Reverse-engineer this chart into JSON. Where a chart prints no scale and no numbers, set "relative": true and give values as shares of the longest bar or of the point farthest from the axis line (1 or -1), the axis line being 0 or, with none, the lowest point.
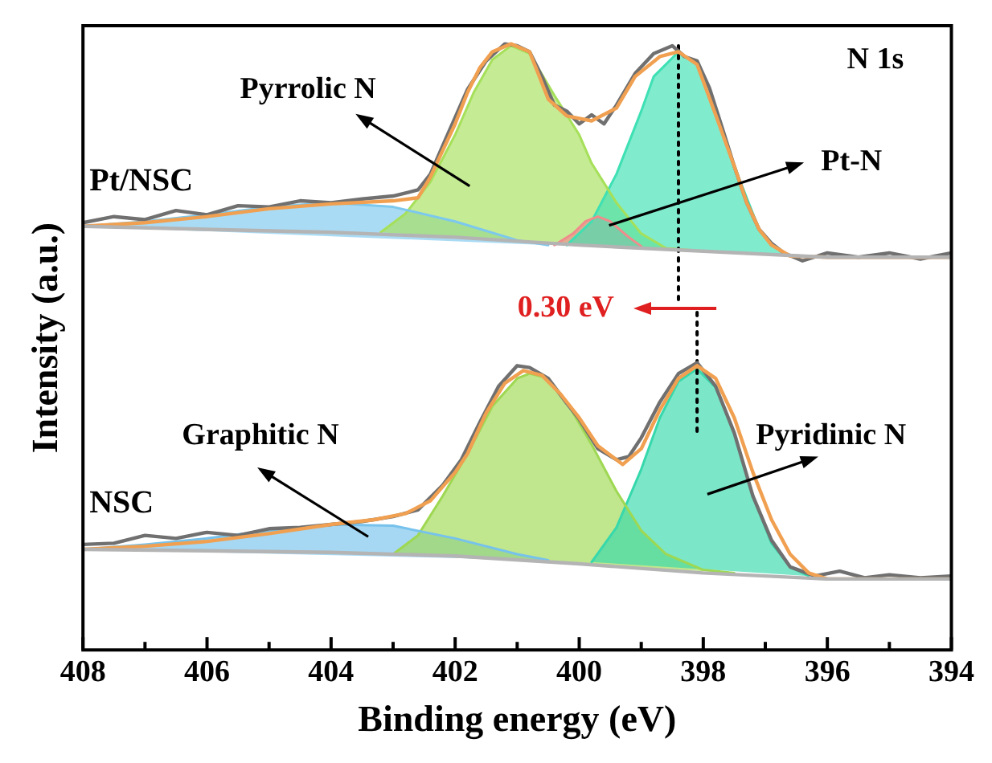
{
  "chart_data": {
    "type": "line",
    "xlabel": "Binding energy (eV)",
    "ylabel": "Intensity (a.u.)",
    "relative": true,
    "legend": false,
    "grid": false,
    "marker": "none",
    "xlim": [
      408,
      394
    ],
    "xticks": [
      408,
      {
        "value": 407,
        "label": null
      },
      406,
      {
        "value": 405,
        "label": null
      },
      404,
      {
        "value": 403,
        "label": null
      },
      402,
      {
        "value": 401,
        "label": null
      },
      400,
      {
        "value": 399,
        "label": null
      },
      398,
      {
        "value": 397,
        "label": null
      },
      396,
      {
        "value": 395,
        "label": null
      },
      394
    ],
    "annotations": [
      "N 1s",
      "0.30 eV",
      "Pyrrolic N",
      "Pt-N",
      "Graphitic N",
      "Pyridinic N"
    ],
    "series": [
      {
        "type": "line",
        "color": "#b4b4b4",
        "x": [
          408,
          404,
          402,
          400,
          398,
          396,
          394
        ],
        "values": [
          0.699,
          0.689,
          0.681,
          0.668,
          0.658,
          0.648,
          0.648
        ]
      },
      {
        "type": "area",
        "color": "#7cc8ee",
        "x": [
          408,
          407,
          406,
          405,
          404,
          403,
          402,
          401,
          400.5
        ],
        "values": [
          0.699,
          0.707,
          0.718,
          0.731,
          0.738,
          0.731,
          0.707,
          0.676,
          0.668
        ]
      },
      {
        "type": "area",
        "color": "#a6e05a",
        "x": [
          403.2,
          402.8,
          402.4,
          402,
          401.7,
          401.4,
          401.1,
          400.8,
          400.4,
          400,
          399.8,
          399.4,
          399,
          398.6,
          398
        ],
        "values": [
          0.689,
          0.72,
          0.772,
          0.85,
          0.92,
          0.974,
          0.997,
          0.984,
          0.915,
          0.85,
          0.803,
          0.738,
          0.687,
          0.663,
          0.658
        ]
      },
      {
        "type": "area",
        "color": "#f08c8c",
        "x": [
          400.4,
          400.1,
          399.9,
          399.7,
          399.5,
          399.2,
          399
        ],
        "values": [
          0.668,
          0.687,
          0.707,
          0.715,
          0.707,
          0.681,
          0.666
        ]
      },
      {
        "type": "area",
        "color": "#3ee0b4",
        "x": [
          400.2,
          399.8,
          399.4,
          399,
          398.8,
          398.4,
          398.1,
          397.8,
          397.5,
          397.1,
          396.9,
          396.6
        ],
        "values": [
          0.668,
          0.707,
          0.785,
          0.889,
          0.946,
          0.987,
          0.966,
          0.883,
          0.798,
          0.694,
          0.668,
          0.65
        ]
      },
      {
        "type": "line",
        "color": "#f0a050",
        "x": [
          408,
          407,
          406,
          405,
          404,
          403,
          402.6,
          402.4,
          402.2,
          402,
          401.8,
          401.6,
          401.4,
          401.1,
          400.8,
          400.5,
          400.2,
          399.8,
          399.4,
          399.1,
          398.7,
          398.4,
          398.1,
          397.8,
          397.5,
          397.3,
          397.1,
          396.9,
          396.6,
          396,
          394
        ],
        "values": [
          0.699,
          0.705,
          0.715,
          0.728,
          0.736,
          0.741,
          0.746,
          0.78,
          0.824,
          0.868,
          0.92,
          0.961,
          0.987,
          1.0,
          0.987,
          0.909,
          0.881,
          0.873,
          0.894,
          0.946,
          0.979,
          0.987,
          0.966,
          0.883,
          0.798,
          0.738,
          0.694,
          0.668,
          0.65,
          0.648,
          0.648
        ]
      },
      {
        "type": "line",
        "name": "Pt/NSC",
        "color": "#707070",
        "x": [
          408,
          407.5,
          407,
          406.5,
          406,
          405.5,
          405,
          404.5,
          404,
          403.5,
          403,
          402.6,
          402.4,
          402.2,
          401.8,
          401.5,
          401.2,
          401,
          400.8,
          400.6,
          400.4,
          400.2,
          400,
          399.8,
          399.6,
          399.4,
          399.1,
          398.8,
          398.5,
          398.3,
          398.1,
          397.9,
          397.7,
          397.5,
          397.3,
          397.1,
          396.9,
          396.7,
          396.4,
          396,
          395.5,
          395,
          394.5,
          394
        ],
        "values": [
          0.705,
          0.715,
          0.71,
          0.725,
          0.718,
          0.733,
          0.731,
          0.741,
          0.738,
          0.744,
          0.749,
          0.759,
          0.785,
          0.832,
          0.925,
          0.972,
          1.0,
          0.997,
          0.987,
          0.946,
          0.899,
          0.889,
          0.868,
          0.883,
          0.868,
          0.899,
          0.951,
          0.984,
          0.997,
          0.979,
          0.972,
          0.927,
          0.863,
          0.798,
          0.738,
          0.694,
          0.671,
          0.655,
          0.642,
          0.655,
          0.648,
          0.655,
          0.645,
          0.655
        ]
      },
      {
        "type": "line",
        "color": "#b4b4b4",
        "x": [
          408,
          404,
          402,
          400,
          398,
          396,
          394
        ],
        "values": [
          0.166,
          0.161,
          0.155,
          0.142,
          0.127,
          0.117,
          0.117
        ]
      },
      {
        "type": "area",
        "color": "#76c2ec",
        "x": [
          408,
          407,
          406,
          405,
          404,
          403,
          402,
          401,
          400.5
        ],
        "values": [
          0.166,
          0.174,
          0.184,
          0.197,
          0.207,
          0.205,
          0.184,
          0.158,
          0.148
        ]
      },
      {
        "type": "area",
        "color": "#9ed852",
        "x": [
          403,
          402.6,
          402.2,
          401.8,
          401.4,
          401,
          400.8,
          400.5,
          400.2,
          399.8,
          399.4,
          399,
          398.6,
          398,
          397.5
        ],
        "values": [
          0.158,
          0.189,
          0.254,
          0.324,
          0.402,
          0.448,
          0.456,
          0.448,
          0.409,
          0.339,
          0.262,
          0.197,
          0.158,
          0.132,
          0.127
        ]
      },
      {
        "type": "area",
        "color": "#36d8ac",
        "x": [
          399.8,
          399.4,
          399,
          398.7,
          398.4,
          398.1,
          397.8,
          397.5,
          397.2,
          396.9,
          396.6,
          396.3
        ],
        "values": [
          0.145,
          0.202,
          0.298,
          0.383,
          0.443,
          0.464,
          0.433,
          0.358,
          0.254,
          0.176,
          0.137,
          0.122
        ]
      },
      {
        "type": "line",
        "color": "#f0a050",
        "x": [
          408,
          407,
          406,
          405,
          404,
          403.3,
          402.8,
          402.4,
          402,
          401.8,
          401.5,
          401.2,
          400.9,
          400.6,
          400.3,
          400,
          399.7,
          399.3,
          399,
          398.7,
          398.4,
          398.1,
          397.8,
          397.5,
          397.2,
          396.9,
          396.6,
          396.3,
          396,
          394
        ],
        "values": [
          0.166,
          0.171,
          0.179,
          0.192,
          0.207,
          0.215,
          0.225,
          0.246,
          0.293,
          0.324,
          0.391,
          0.44,
          0.461,
          0.453,
          0.422,
          0.383,
          0.337,
          0.306,
          0.332,
          0.396,
          0.448,
          0.469,
          0.448,
          0.383,
          0.293,
          0.215,
          0.158,
          0.127,
          0.117,
          0.117
        ]
      },
      {
        "type": "line",
        "name": "NSC",
        "color": "#707070",
        "x": [
          408,
          407.5,
          407,
          406.5,
          406,
          405.5,
          405,
          404.5,
          404,
          403.5,
          403,
          402.6,
          402.2,
          401.9,
          401.6,
          401.3,
          401,
          400.8,
          400.5,
          400.2,
          400,
          399.7,
          399.4,
          399.2,
          399,
          398.7,
          398.4,
          398.1,
          397.8,
          397.5,
          397.2,
          396.9,
          396.6,
          396.2,
          395.8,
          395.4,
          395,
          394.5,
          394
        ],
        "values": [
          0.174,
          0.176,
          0.189,
          0.184,
          0.194,
          0.189,
          0.2,
          0.202,
          0.207,
          0.212,
          0.22,
          0.231,
          0.272,
          0.314,
          0.376,
          0.435,
          0.469,
          0.466,
          0.448,
          0.407,
          0.381,
          0.332,
          0.314,
          0.319,
          0.35,
          0.409,
          0.456,
          0.474,
          0.435,
          0.358,
          0.254,
          0.181,
          0.137,
          0.122,
          0.13,
          0.119,
          0.124,
          0.119,
          0.122
        ]
      },
      {
        "type": "line",
        "line_style": "dotted",
        "color": "#000000",
        "x": [
          398.4,
          398.4
        ],
        "values": [
          0.997,
          0.57
        ]
      },
      {
        "type": "line",
        "line_style": "dotted",
        "color": "#000000",
        "x": [
          398.1,
          398.1
        ],
        "values": [
          0.557,
          0.352
        ]
      }
    ]
  }
}
